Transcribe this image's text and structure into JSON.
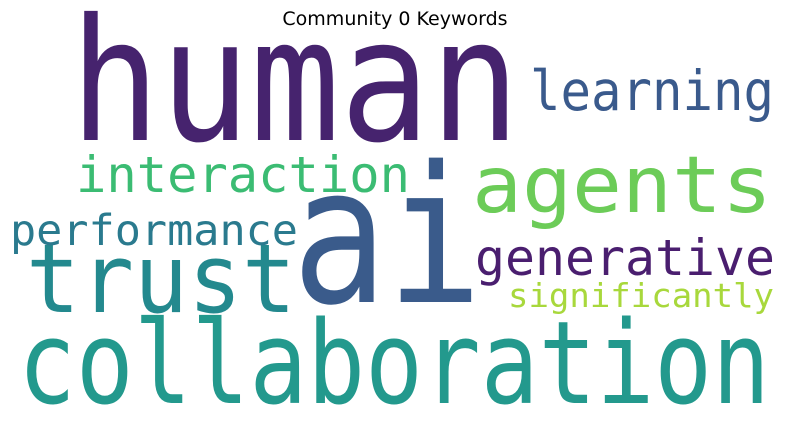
{
  "title": "Community 0 Keywords",
  "words": [
    {
      "text": "human",
      "color": "#46236e"
    },
    {
      "text": "ai",
      "color": "#3a5b8b"
    },
    {
      "text": "collaboration",
      "color": "#23998d"
    },
    {
      "text": "agents",
      "color": "#6ccc58"
    },
    {
      "text": "trust",
      "color": "#23898e"
    },
    {
      "text": "learning",
      "color": "#3a5a8c"
    },
    {
      "text": "interaction",
      "color": "#3bbc73"
    },
    {
      "text": "performance",
      "color": "#2a7a8e"
    },
    {
      "text": "generative",
      "color": "#4a1e6f"
    },
    {
      "text": "significantly",
      "color": "#a8d83c"
    }
  ]
}
